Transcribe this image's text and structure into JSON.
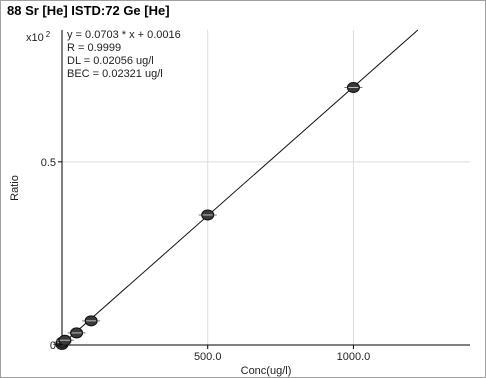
{
  "chart_data": {
    "type": "scatter",
    "title": "88 Sr [He] ISTD:72 Ge [He]",
    "xlabel": "Conc(ug/l)",
    "ylabel": "Ratio",
    "y_multiplier": "x10",
    "y_multiplier_exp": "2",
    "xlim": [
      0,
      1400
    ],
    "ylim": [
      0,
      0.86
    ],
    "x_ticks": [
      {
        "value": 500,
        "label": "500.0"
      },
      {
        "value": 1000,
        "label": "1000.0"
      }
    ],
    "y_ticks": [
      {
        "value": 0,
        "label": "0"
      },
      {
        "value": 0.5,
        "label": "0.5"
      }
    ],
    "grid": true,
    "points": [
      {
        "x": 0,
        "y": 0.0016
      },
      {
        "x": 1,
        "y": 0.0076
      },
      {
        "x": 10,
        "y": 0.013
      },
      {
        "x": 50,
        "y": 0.033
      },
      {
        "x": 100,
        "y": 0.066
      },
      {
        "x": 500,
        "y": 0.355
      },
      {
        "x": 1000,
        "y": 0.703
      }
    ],
    "fit": {
      "slope": 0.000703,
      "intercept": 0.0016
    },
    "annotations": [
      "y = 0.0703 * x  + 0.0016",
      "R = 0.9999",
      "DL = 0.02056 ug/l",
      "BEC = 0.02321 ug/l"
    ]
  }
}
